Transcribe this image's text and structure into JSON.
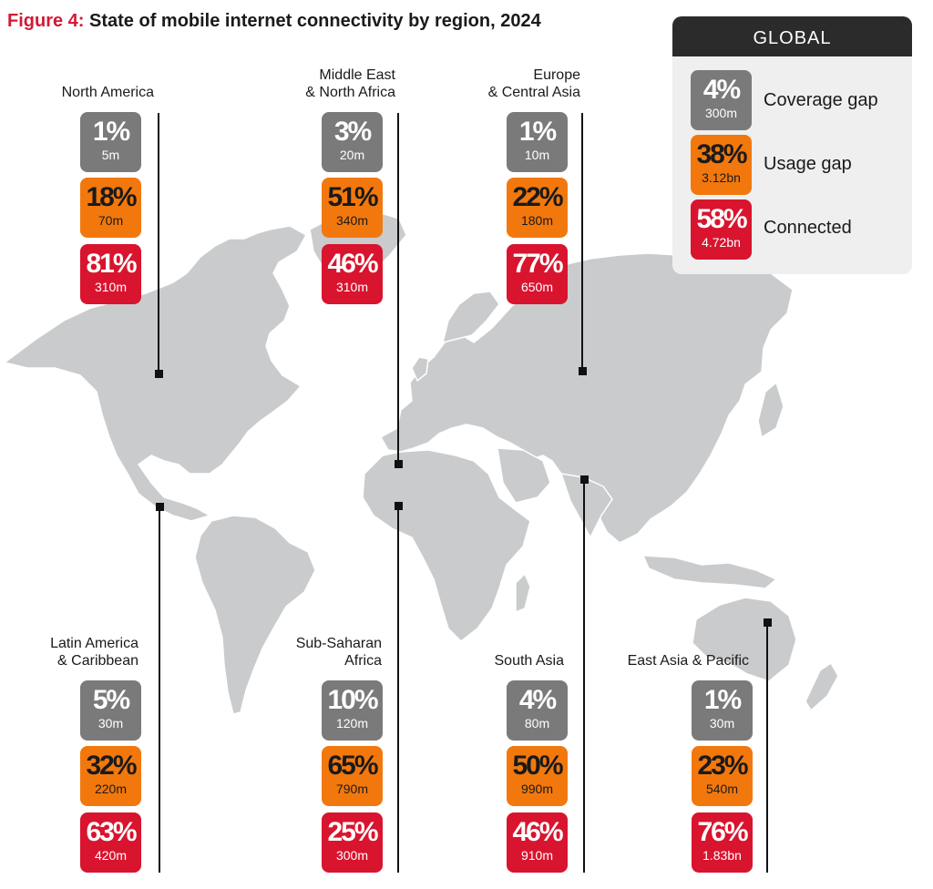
{
  "figure": {
    "number": "Figure 4:",
    "title": "State of mobile internet connectivity by region, 2024"
  },
  "legend": {
    "heading": "GLOBAL",
    "items": [
      {
        "key": "coverage",
        "label": "Coverage gap",
        "pct": "4%",
        "count": "300m"
      },
      {
        "key": "usage",
        "label": "Usage gap",
        "pct": "38%",
        "count": "3.12bn"
      },
      {
        "key": "connected",
        "label": "Connected",
        "pct": "58%",
        "count": "4.72bn"
      }
    ]
  },
  "regions": [
    {
      "name": "North America",
      "coverage": {
        "pct": "1%",
        "count": "5m"
      },
      "usage": {
        "pct": "18%",
        "count": "70m"
      },
      "connected": {
        "pct": "81%",
        "count": "310m"
      }
    },
    {
      "name": "Middle East\n& North Africa",
      "coverage": {
        "pct": "3%",
        "count": "20m"
      },
      "usage": {
        "pct": "51%",
        "count": "340m"
      },
      "connected": {
        "pct": "46%",
        "count": "310m"
      }
    },
    {
      "name": "Europe\n& Central Asia",
      "coverage": {
        "pct": "1%",
        "count": "10m"
      },
      "usage": {
        "pct": "22%",
        "count": "180m"
      },
      "connected": {
        "pct": "77%",
        "count": "650m"
      }
    },
    {
      "name": "Latin America\n& Caribbean",
      "coverage": {
        "pct": "5%",
        "count": "30m"
      },
      "usage": {
        "pct": "32%",
        "count": "220m"
      },
      "connected": {
        "pct": "63%",
        "count": "420m"
      }
    },
    {
      "name": "Sub-Saharan\nAfrica",
      "coverage": {
        "pct": "10%",
        "count": "120m"
      },
      "usage": {
        "pct": "65%",
        "count": "790m"
      },
      "connected": {
        "pct": "25%",
        "count": "300m"
      }
    },
    {
      "name": "South Asia",
      "coverage": {
        "pct": "4%",
        "count": "80m"
      },
      "usage": {
        "pct": "50%",
        "count": "990m"
      },
      "connected": {
        "pct": "46%",
        "count": "910m"
      }
    },
    {
      "name": "East Asia & Pacific",
      "coverage": {
        "pct": "1%",
        "count": "30m"
      },
      "usage": {
        "pct": "23%",
        "count": "540m"
      },
      "connected": {
        "pct": "76%",
        "count": "1.83bn"
      }
    }
  ],
  "colors": {
    "coverage": "#7a7a7a",
    "usage": "#f2780d",
    "connected": "#d9142e",
    "map": "#c9cbcc",
    "accent": "#d21a36"
  }
}
